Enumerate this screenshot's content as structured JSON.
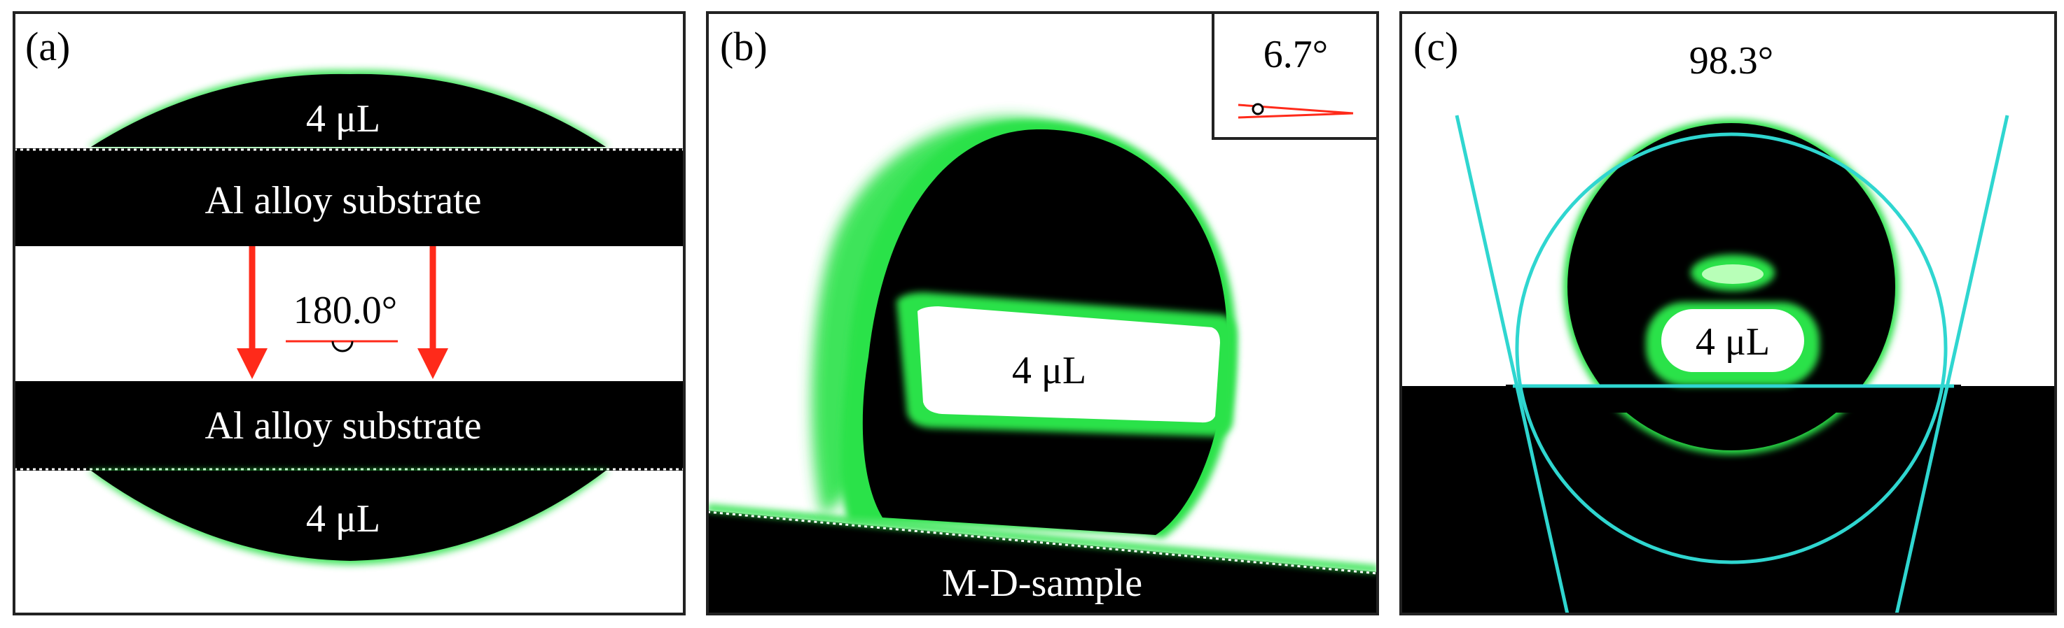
{
  "panels": {
    "a": {
      "letter": "(a)",
      "top_drop_volume": "4 μL",
      "top_substrate_label": "Al alloy substrate",
      "angle": "180.0°",
      "bottom_substrate_label": "Al alloy substrate",
      "bottom_drop_volume": "4 μL"
    },
    "b": {
      "letter": "(b)",
      "tilt_angle": "6.7°",
      "drop_volume": "4 μL",
      "sample_label": "M-D-sample"
    },
    "c": {
      "letter": "(c)",
      "contact_angle": "98.3°",
      "drop_volume": "4 μL"
    }
  },
  "colors": {
    "drop_edge_green": "#2be24a",
    "arrow_red": "#ff2a1a",
    "fit_line_cyan": "#2fd6d0",
    "frame": "#222222"
  }
}
